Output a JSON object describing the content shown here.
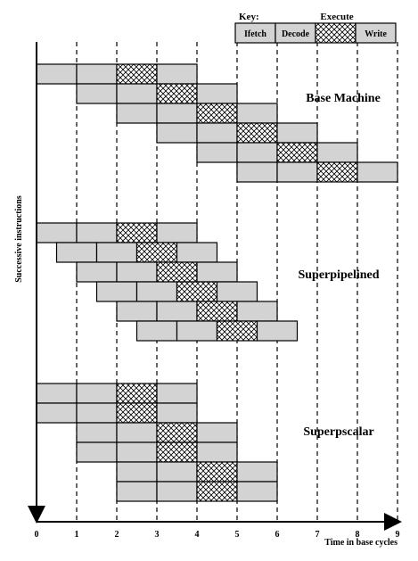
{
  "key": {
    "label": "Key:",
    "execute_label": "Execute",
    "stages": [
      "Ifetch",
      "Decode",
      "",
      "Write"
    ]
  },
  "sections": [
    {
      "label": "Base Machine",
      "rows": [
        0,
        1,
        2,
        3,
        4,
        5
      ],
      "stage_width": 1
    },
    {
      "label": "Superpipelined",
      "rows": [
        0,
        0.5,
        1,
        1.5,
        2,
        2.5
      ],
      "stage_width": 1
    },
    {
      "label": "Superpscalar",
      "rows": [
        0,
        0,
        1,
        1,
        2,
        2
      ],
      "stage_width": 1
    }
  ],
  "axis": {
    "x_label": "Time in base cycles",
    "y_label": "Successive instructions",
    "ticks": [
      "0",
      "1",
      "2",
      "3",
      "4",
      "5",
      "6",
      "7",
      "8",
      "9"
    ]
  },
  "colors": {
    "box_fill": "#d3d3d3",
    "stroke": "#000000",
    "background": "#ffffff"
  }
}
